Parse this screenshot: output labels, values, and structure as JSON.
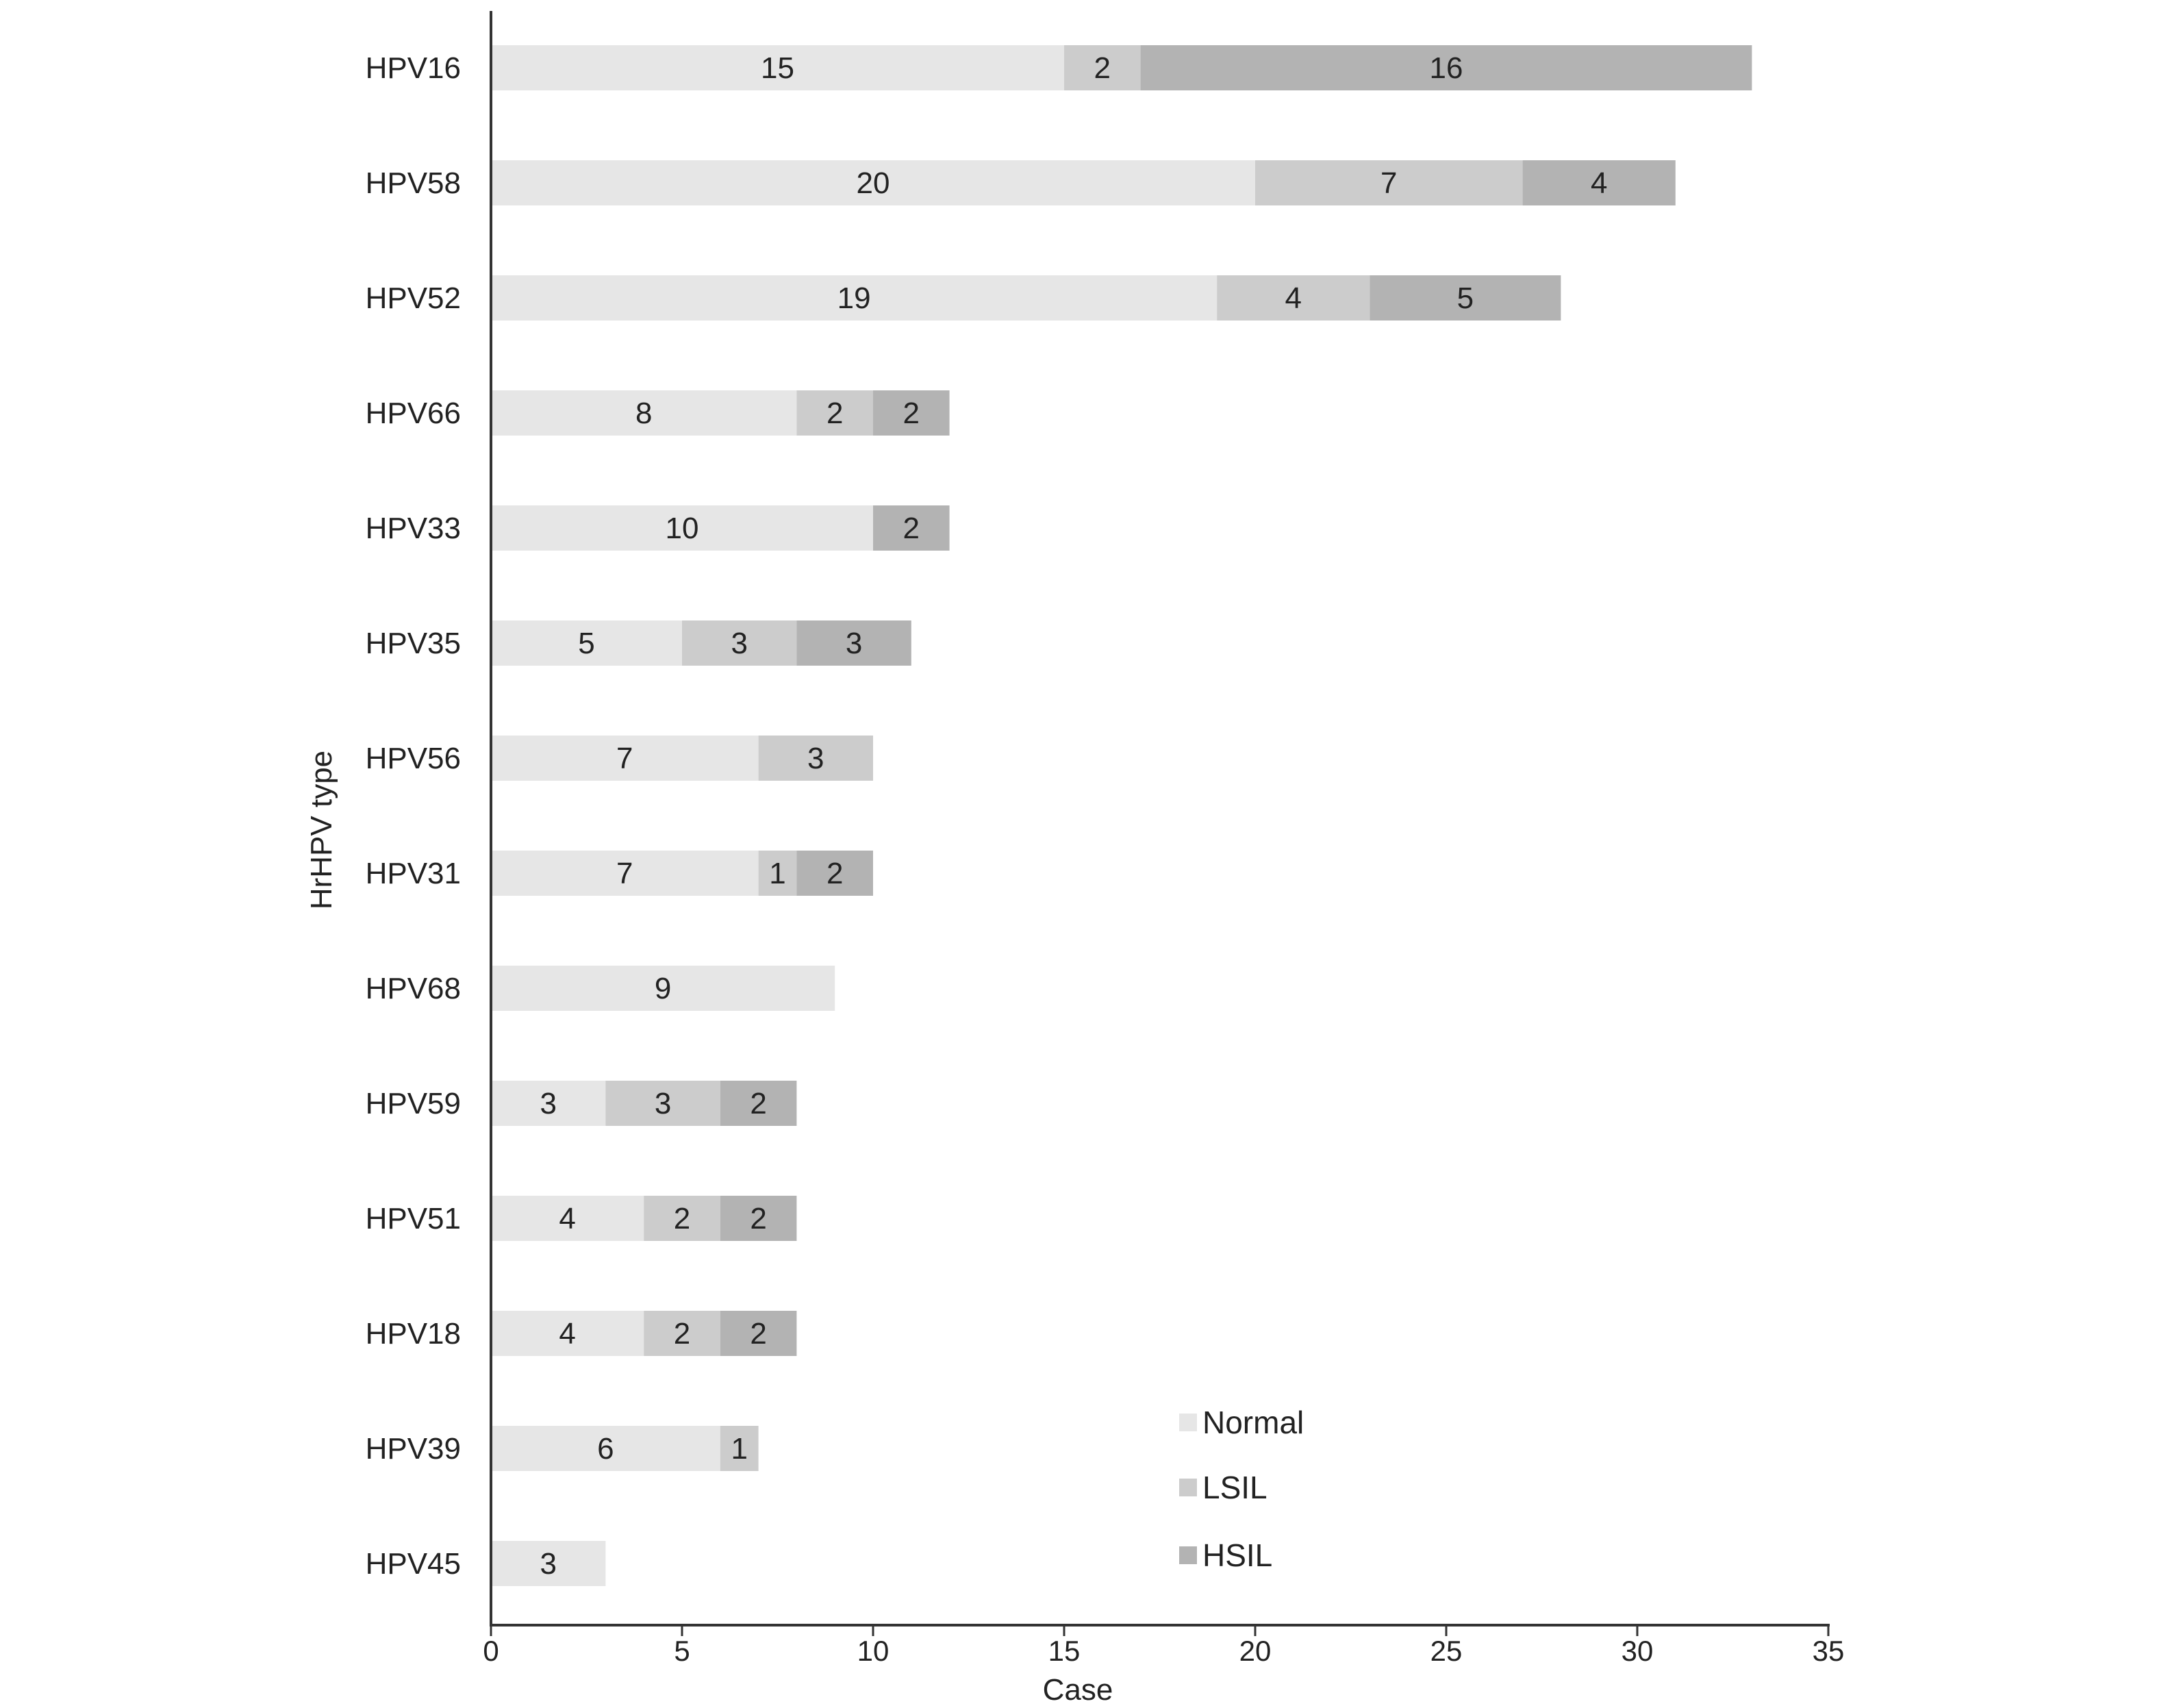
{
  "chart_data": {
    "type": "bar",
    "orientation": "horizontal",
    "stacked": true,
    "title": "",
    "xlabel": "Case",
    "ylabel": "HrHPV type",
    "xlim": [
      0,
      35
    ],
    "xticks": [
      "0",
      "5",
      "10",
      "15",
      "20",
      "25",
      "30",
      "35"
    ],
    "grid": false,
    "legend_position": "bottom-right",
    "categories": [
      "HPV16",
      "HPV58",
      "HPV52",
      "HPV66",
      "HPV33",
      "HPV35",
      "HPV56",
      "HPV31",
      "HPV68",
      "HPV59",
      "HPV51",
      "HPV18",
      "HPV39",
      "HPV45"
    ],
    "series": [
      {
        "name": "Normal",
        "color": "#e6e6e6",
        "values": [
          15,
          20,
          19,
          8,
          10,
          5,
          7,
          7,
          9,
          3,
          4,
          4,
          6,
          3
        ]
      },
      {
        "name": "LSIL",
        "color": "#cccccc",
        "values": [
          2,
          7,
          4,
          2,
          0,
          3,
          3,
          1,
          0,
          3,
          2,
          2,
          1,
          0
        ]
      },
      {
        "name": "HSIL",
        "color": "#b3b3b3",
        "values": [
          16,
          4,
          5,
          2,
          2,
          3,
          0,
          2,
          0,
          2,
          2,
          2,
          0,
          0
        ]
      }
    ]
  }
}
